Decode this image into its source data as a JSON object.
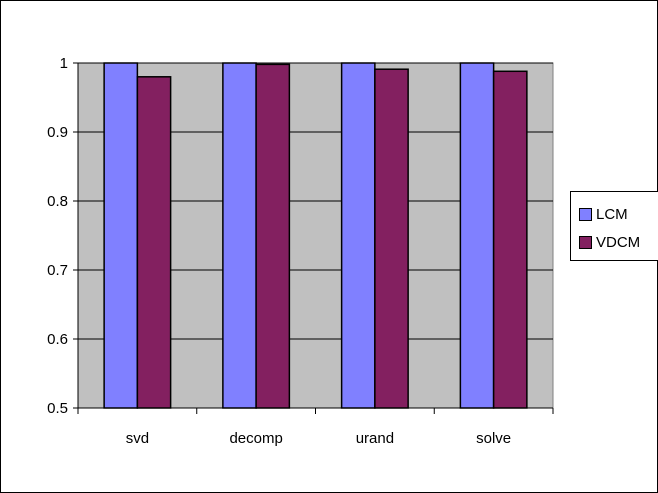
{
  "chart_data": {
    "type": "bar",
    "title": "",
    "xlabel": "",
    "ylabel": "",
    "categories": [
      "svd",
      "decomp",
      "urand",
      "solve"
    ],
    "series": [
      {
        "name": "LCM",
        "values": [
          1.0,
          1.0,
          1.0,
          1.0
        ],
        "color": "#8080ff"
      },
      {
        "name": "VDCM",
        "values": [
          0.98,
          0.998,
          0.991,
          0.988
        ],
        "color": "#832060"
      }
    ],
    "ylim": [
      0.5,
      1.0
    ],
    "yticks": [
      "0.5",
      "0.6",
      "0.7",
      "0.8",
      "0.9",
      "1"
    ],
    "grid": true,
    "plot_background": "#c0c0c0",
    "legend_position": "right"
  }
}
